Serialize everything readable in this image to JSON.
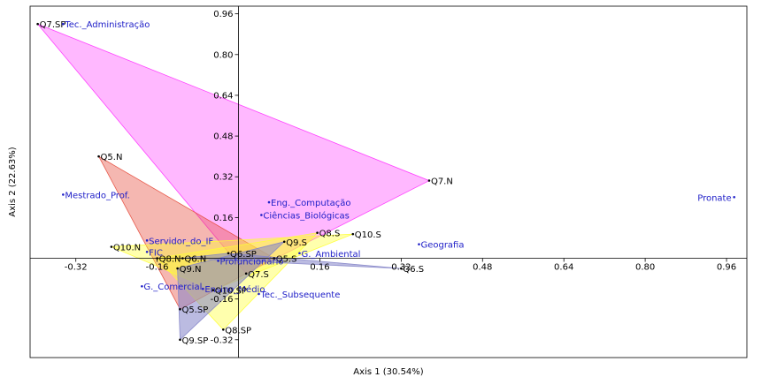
{
  "chart_data": {
    "type": "scatter",
    "title": "",
    "xlabel": "Axis 1 (30.54%)",
    "ylabel": "Axis 2 (22.63%)",
    "xlim": [
      -0.41,
      1.0
    ],
    "ylim": [
      -0.39,
      0.99
    ],
    "x_ticks": [
      -0.32,
      -0.16,
      0.16,
      0.32,
      0.48,
      0.64,
      0.8,
      0.96
    ],
    "y_ticks": [
      -0.32,
      -0.16,
      0.16,
      0.32,
      0.48,
      0.64,
      0.8,
      0.96
    ],
    "x_tick_labels": [
      "-0.32",
      "-0.16",
      "0.16",
      "0.32",
      "0.48",
      "0.64",
      "0.80",
      "0.96"
    ],
    "y_tick_labels": [
      "-0.32",
      "-0.16",
      "0.16",
      "0.32",
      "0.48",
      "0.64",
      "0.80",
      "0.96"
    ],
    "grid": false,
    "colors": {
      "question_point": "#000000",
      "category_point": "#2020c8",
      "axis": "#000000"
    },
    "polygons": [
      {
        "color": "#ff33ff",
        "opacity": 0.35,
        "vertices": [
          "Q7.SP",
          "Q7.N",
          "Q7.S"
        ]
      },
      {
        "color": "#e64b3c",
        "opacity": 0.4,
        "vertices": [
          "Q5.N",
          "Q5.S",
          "Q5.SP"
        ]
      },
      {
        "color": "#ffff33",
        "opacity": 0.4,
        "vertices": [
          "Q10.N",
          "Q10.S",
          "Q10.SP"
        ]
      },
      {
        "color": "#ffff33",
        "opacity": 0.4,
        "vertices": [
          "Q8.N",
          "Q8.S",
          "Q8.SP"
        ]
      },
      {
        "color": "#8484c8",
        "opacity": 0.55,
        "vertices": [
          "Q9.N",
          "Q9.S",
          "Q9.SP"
        ]
      },
      {
        "color": "#8484c8",
        "opacity": 0.55,
        "vertices": [
          "Q6.N",
          "Q6.S",
          "Q6.SP"
        ]
      }
    ],
    "points": [
      {
        "label": "Q7.SP",
        "x": -0.395,
        "y": 0.92,
        "kind": "question"
      },
      {
        "label": "Tec._Administração",
        "x": -0.345,
        "y": 0.92,
        "kind": "category"
      },
      {
        "label": "Q7.N",
        "x": 0.375,
        "y": 0.305,
        "kind": "question"
      },
      {
        "label": "Pronate",
        "x": 0.975,
        "y": 0.24,
        "kind": "category"
      },
      {
        "label": "Q5.N",
        "x": -0.275,
        "y": 0.4,
        "kind": "question"
      },
      {
        "label": "Mestrado_Prof.",
        "x": -0.345,
        "y": 0.25,
        "kind": "category"
      },
      {
        "label": "Eng._Computação",
        "x": 0.06,
        "y": 0.22,
        "kind": "category"
      },
      {
        "label": "Ciências_Biológicas",
        "x": 0.045,
        "y": 0.17,
        "kind": "category"
      },
      {
        "label": "Q8.S",
        "x": 0.155,
        "y": 0.1,
        "kind": "question"
      },
      {
        "label": "Q10.S",
        "x": 0.225,
        "y": 0.095,
        "kind": "question"
      },
      {
        "label": "Geografia",
        "x": 0.355,
        "y": 0.055,
        "kind": "category"
      },
      {
        "label": "Q10.N",
        "x": -0.25,
        "y": 0.045,
        "kind": "question"
      },
      {
        "label": "Servidor_do_IF",
        "x": -0.18,
        "y": 0.07,
        "kind": "category"
      },
      {
        "label": "FIC",
        "x": -0.18,
        "y": 0.025,
        "kind": "category"
      },
      {
        "label": "Q9.S",
        "x": 0.09,
        "y": 0.065,
        "kind": "question"
      },
      {
        "label": "G._Ambiental",
        "x": 0.12,
        "y": 0.02,
        "kind": "category"
      },
      {
        "label": "Q6.SP",
        "x": -0.02,
        "y": 0.02,
        "kind": "question"
      },
      {
        "label": "Q8.N",
        "x": -0.16,
        "y": 0.0,
        "kind": "question"
      },
      {
        "label": "Q5.S",
        "x": 0.07,
        "y": 0.0,
        "kind": "question"
      },
      {
        "label": "Profuncionário",
        "x": -0.04,
        "y": -0.01,
        "kind": "category"
      },
      {
        "label": "Q6.S",
        "x": 0.32,
        "y": -0.04,
        "kind": "question"
      },
      {
        "label": "Q9.N",
        "x": -0.12,
        "y": -0.04,
        "kind": "question"
      },
      {
        "label": "Q7.S",
        "x": 0.015,
        "y": -0.06,
        "kind": "question"
      },
      {
        "label": "Q6.N",
        "x": -0.11,
        "y": 0.0,
        "kind": "question"
      },
      {
        "label": "G._Comercial",
        "x": -0.19,
        "y": -0.11,
        "kind": "category"
      },
      {
        "label": "Ensino_Médio",
        "x": -0.07,
        "y": -0.12,
        "kind": "category"
      },
      {
        "label": "Q10.SP",
        "x": -0.05,
        "y": -0.125,
        "kind": "question"
      },
      {
        "label": "Tec._Subsequente",
        "x": 0.04,
        "y": -0.14,
        "kind": "category"
      },
      {
        "label": "Q5.SP",
        "x": -0.115,
        "y": -0.2,
        "kind": "question"
      },
      {
        "label": "Q8.SP",
        "x": -0.03,
        "y": -0.28,
        "kind": "question"
      },
      {
        "label": "Q9.SP",
        "x": -0.115,
        "y": -0.32,
        "kind": "question"
      }
    ]
  }
}
